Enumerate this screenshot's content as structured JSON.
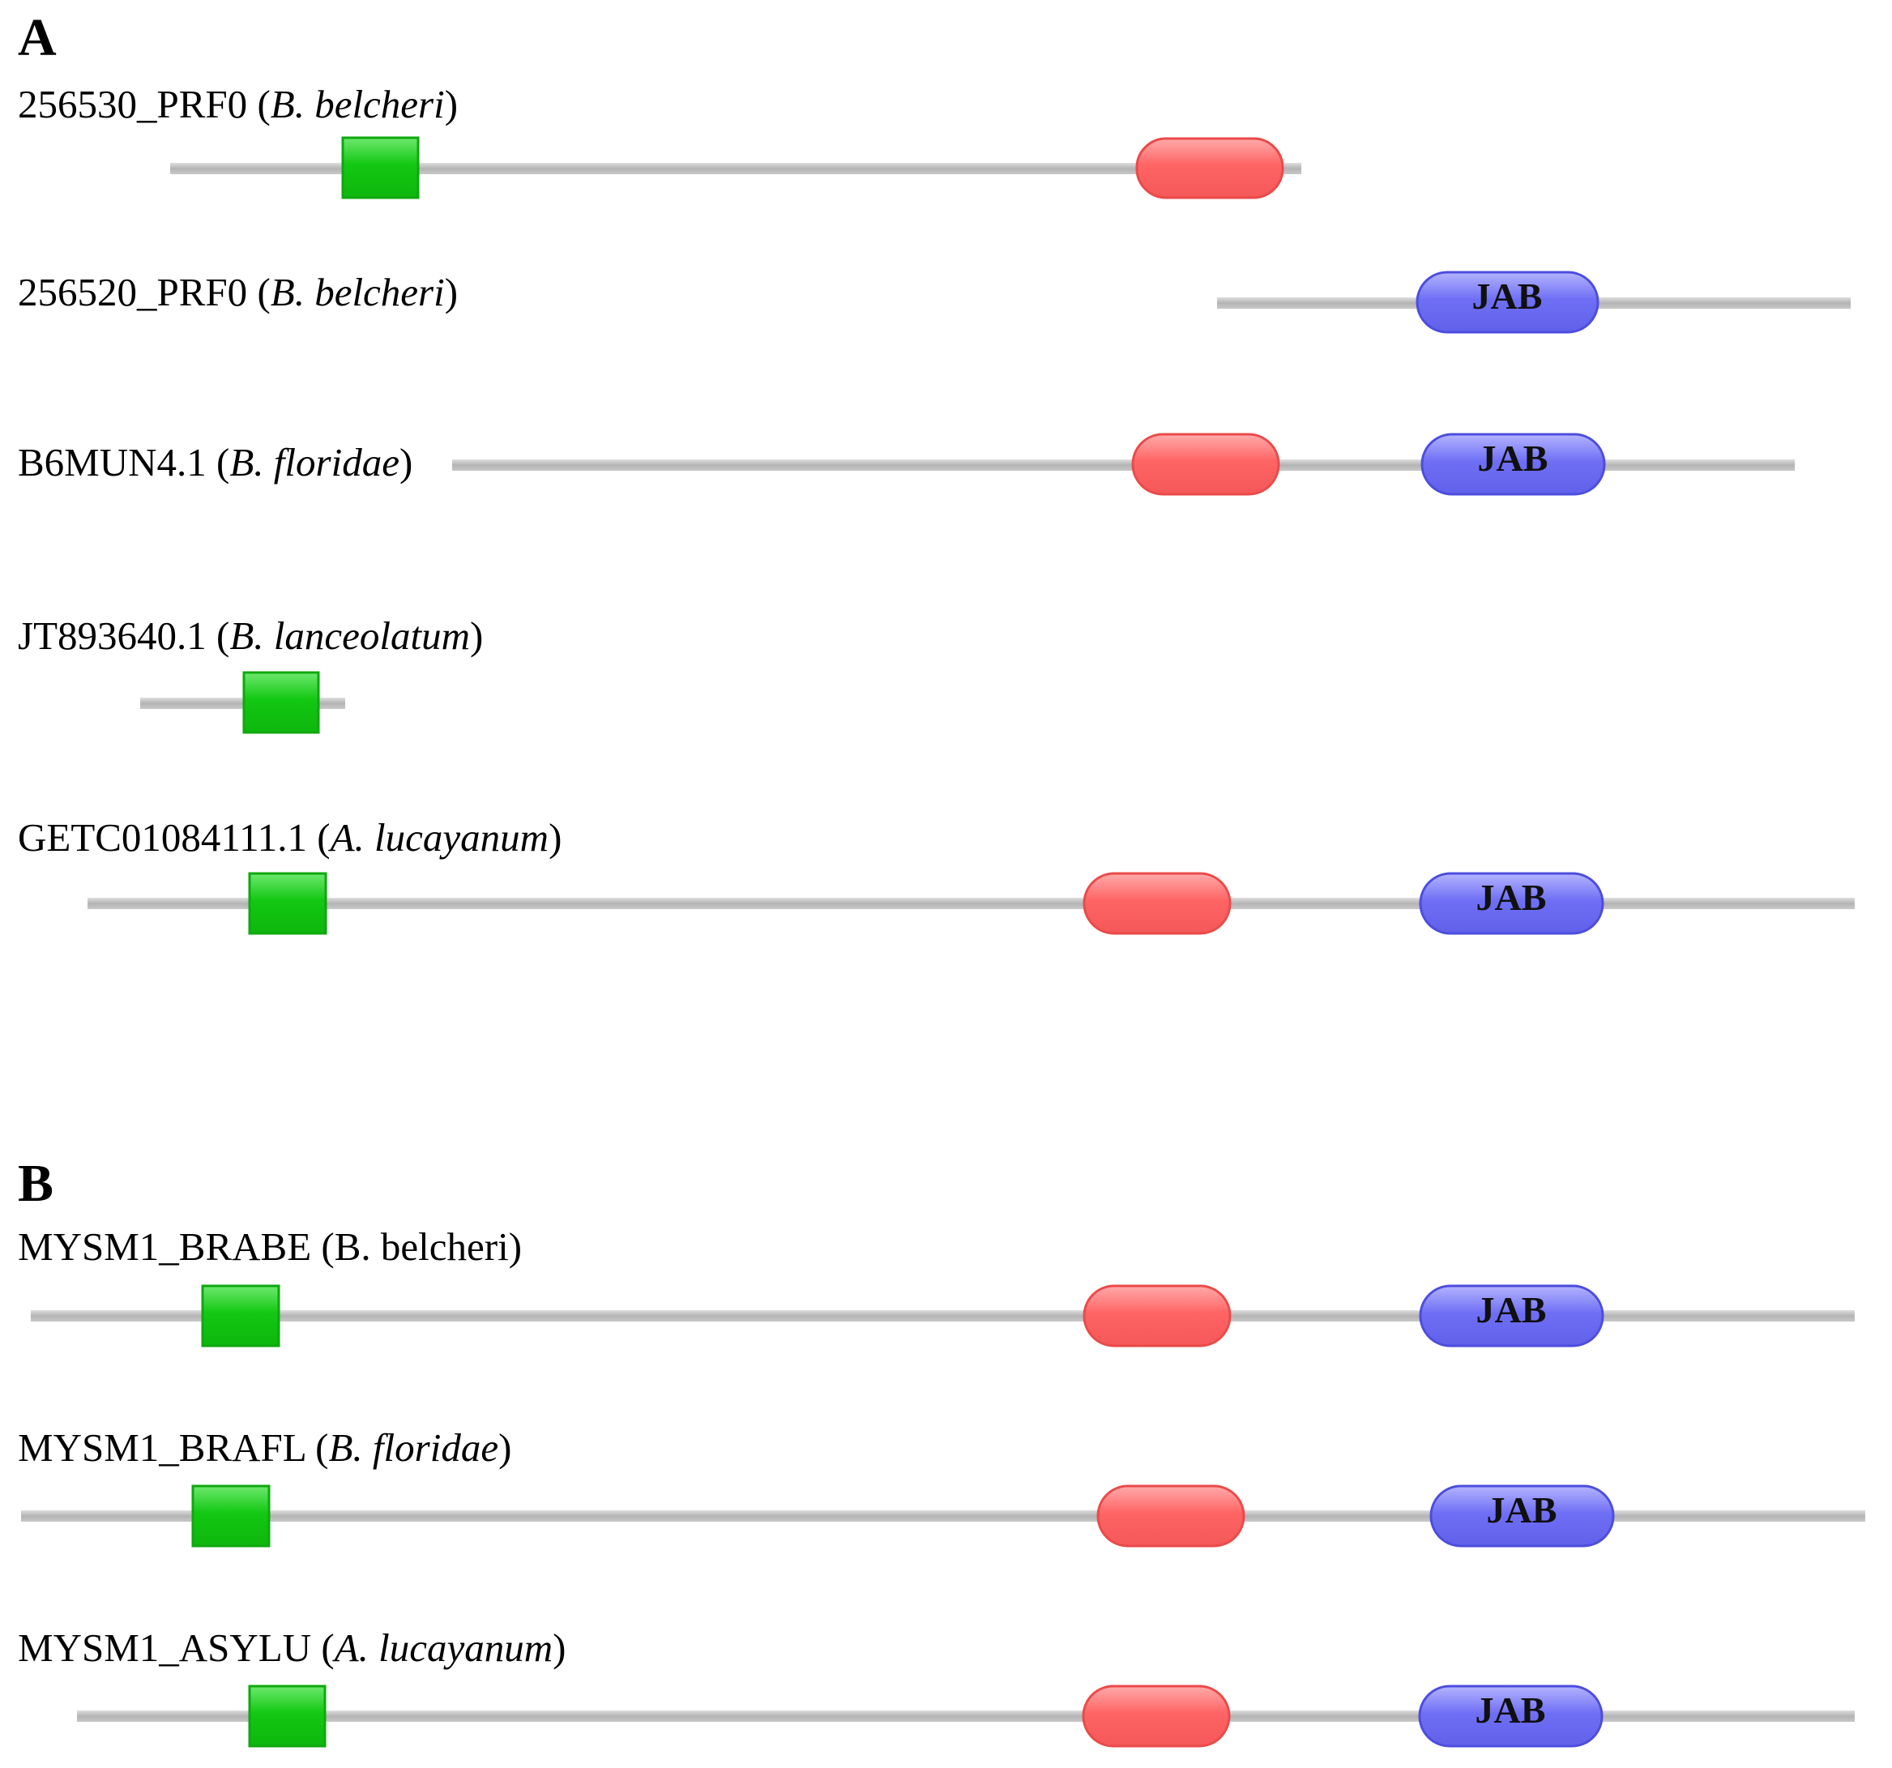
{
  "colors": {
    "backbone": "#b4b4b4",
    "backbone_highlight": "#dedede",
    "green_domain": "#12c812",
    "green_domain_border": "#0fa80f",
    "red_domain": "#ff6464",
    "red_domain_border": "#ea4a4a",
    "jab_domain": "#6f6ff5",
    "jab_domain_border": "#4d4dde"
  },
  "panels": [
    {
      "label": "A",
      "proteins": [
        {
          "id": "256530_PRF0",
          "species": "B. belcheri",
          "domains": [
            {
              "type": "green"
            },
            {
              "type": "red"
            }
          ]
        },
        {
          "id": "256520_PRF0",
          "species": "B. belcheri",
          "domains": [
            {
              "type": "jab",
              "label": "JAB"
            }
          ]
        },
        {
          "id": "B6MUN4.1",
          "species": "B. floridae",
          "domains": [
            {
              "type": "red"
            },
            {
              "type": "jab",
              "label": "JAB"
            }
          ]
        },
        {
          "id": "JT893640.1",
          "species": "B. lanceolatum",
          "domains": [
            {
              "type": "green"
            }
          ]
        },
        {
          "id": "GETC01084111.1",
          "species": "A. lucayanum",
          "domains": [
            {
              "type": "green"
            },
            {
              "type": "red"
            },
            {
              "type": "jab",
              "label": "JAB"
            }
          ]
        }
      ]
    },
    {
      "label": "B",
      "proteins": [
        {
          "id": "MYSM1_BRABE",
          "species": "B. belcheri",
          "species_style": "upright-initial",
          "domains": [
            {
              "type": "green"
            },
            {
              "type": "red"
            },
            {
              "type": "jab",
              "label": "JAB"
            }
          ]
        },
        {
          "id": "MYSM1_BRAFL",
          "species": "B. floridae",
          "domains": [
            {
              "type": "green"
            },
            {
              "type": "red"
            },
            {
              "type": "jab",
              "label": "JAB"
            }
          ]
        },
        {
          "id": "MYSM1_ASYLU",
          "species": "A. lucayanum",
          "domains": [
            {
              "type": "green"
            },
            {
              "type": "red"
            },
            {
              "type": "jab",
              "label": "JAB"
            }
          ]
        }
      ]
    }
  ]
}
